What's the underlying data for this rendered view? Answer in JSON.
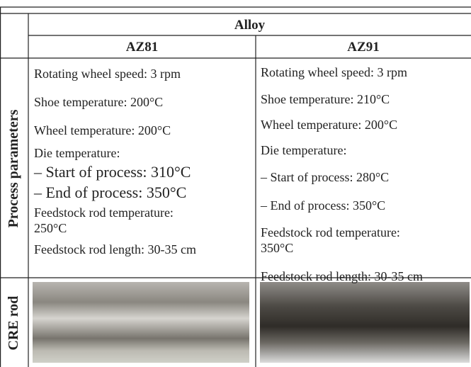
{
  "header": {
    "title": "Alloy",
    "columns": [
      "AZ81",
      "AZ91"
    ]
  },
  "rows": [
    {
      "label": "Process parameters",
      "cells": [
        [
          "Rotating wheel speed: 3 rpm",
          "Shoe temperature: 200°C",
          "Wheel temperature: 200°C",
          "Die temperature:",
          "– Start of process: 310°C",
          "– End of process: 350°C",
          "Feedstock rod temperature:",
          "250°C",
          "Feedstock rod length: 30-35 cm"
        ],
        [
          "Rotating wheel speed: 3 rpm",
          "Shoe temperature: 210°C",
          "Wheel temperature: 200°C",
          "Die temperature:",
          "– Start of process: 280°C",
          "– End of process: 350°C",
          "Feedstock rod temperature:",
          "350°C",
          "Feedstock rod length: 30-35 cm"
        ]
      ]
    },
    {
      "label": "CRE rod"
    }
  ]
}
